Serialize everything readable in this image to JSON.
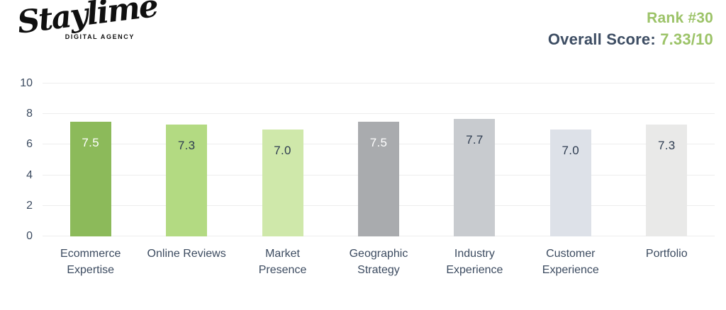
{
  "header": {
    "logo_text": "Staylime",
    "logo_tagline": "DIGITAL AGENCY",
    "rank_label": "Rank #30",
    "overall_score_label": "Overall Score: ",
    "overall_score_value": "7.33/10"
  },
  "colors": {
    "accent_green": "#9cc368",
    "text_dark": "#3d4d63",
    "grid_line": "#ededed",
    "logo_black": "#101010"
  },
  "chart_data": {
    "type": "bar",
    "title": "",
    "xlabel": "",
    "ylabel": "",
    "categories": [
      "Ecommerce Expertise",
      "Online Reviews",
      "Market Presence",
      "Geographic Strategy",
      "Industry Experience",
      "Customer Experience",
      "Portfolio"
    ],
    "values": [
      7.5,
      7.3,
      7.0,
      7.5,
      7.7,
      7.0,
      7.3
    ],
    "value_labels": [
      "7.5",
      "7.3",
      "7.0",
      "7.5",
      "7.7",
      "7.0",
      "7.3"
    ],
    "bar_colors": [
      "#8cba5a",
      "#b3da82",
      "#cfe8aa",
      "#a9abae",
      "#c8cbcf",
      "#dde1e8",
      "#e9e9e8"
    ],
    "bar_label_colors": [
      "#ffffff",
      "#2e3c50",
      "#2e3c50",
      "#ffffff",
      "#2e3c50",
      "#2e3c50",
      "#2e3c50"
    ],
    "ylim": [
      0,
      10
    ],
    "yticks": [
      0,
      2,
      4,
      6,
      8,
      10
    ],
    "grid": "on",
    "legend": "off"
  }
}
